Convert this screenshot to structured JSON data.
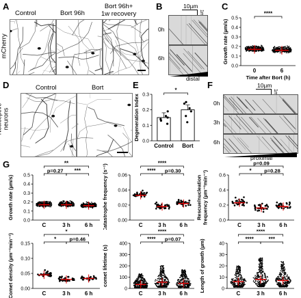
{
  "panels": {
    "A": {
      "letter": "A",
      "row_label": "mCherry",
      "titles": [
        "Control",
        "Bort 96h",
        "Bort 96h+\n1w recovery"
      ]
    },
    "B": {
      "letter": "B",
      "scale_x": "10µm",
      "scale_t": "1min",
      "rows": [
        "0h",
        "6h"
      ],
      "axis": "distal"
    },
    "C": {
      "letter": "C"
    },
    "D": {
      "letter": "D",
      "row_label": "Nociceptive\nneurons",
      "titles": [
        "Control",
        "Bort"
      ]
    },
    "E": {
      "letter": "E"
    },
    "F": {
      "letter": "F",
      "scale_x": "10µm",
      "scale_t": "1min",
      "rows": [
        "0h",
        "3h",
        "6h"
      ],
      "axis": "proximal"
    },
    "G": {
      "letter": "G"
    }
  },
  "chart_data": [
    {
      "id": "C",
      "type": "scatter",
      "ylabel": "Growth rate (µm/s)",
      "xlabel": "Time after Bort (h)",
      "categories": [
        "0",
        "6"
      ],
      "ylim": [
        0,
        0.5
      ],
      "yticks": [
        "0.0",
        "0.1",
        "0.2",
        "0.3",
        "0.4",
        "0.5"
      ],
      "means": [
        0.17,
        0.16
      ],
      "sig": [
        {
          "from": 0,
          "to": 1,
          "label": "****"
        }
      ]
    },
    {
      "id": "E",
      "type": "bar",
      "ylabel": "Degeneration Index",
      "categories": [
        "Control",
        "Bort"
      ],
      "values": [
        0.15,
        0.2
      ],
      "ylim": [
        0,
        0.3
      ],
      "yticks": [
        "0.0",
        "0.1",
        "0.2",
        "0.3"
      ],
      "points": [
        [
          0.11,
          0.13,
          0.14,
          0.15,
          0.16,
          0.19
        ],
        [
          0.12,
          0.16,
          0.19,
          0.21,
          0.24,
          0.25
        ]
      ],
      "sig": [
        {
          "from": 0,
          "to": 1,
          "label": "*"
        }
      ]
    },
    {
      "id": "G1",
      "type": "scatter",
      "ylabel": "Growth rate (µm/s)",
      "categories": [
        "C",
        "3 h",
        "6 h"
      ],
      "ylim": [
        0,
        0.5
      ],
      "yticks": [
        "0.0",
        "0.1",
        "0.2",
        "0.3",
        "0.4",
        "0.5"
      ],
      "means": [
        0.17,
        0.17,
        0.16
      ],
      "sig": [
        {
          "from": 0,
          "to": 1,
          "label": "p=0.27"
        },
        {
          "from": 1,
          "to": 2,
          "label": "***"
        },
        {
          "from": 0,
          "to": 2,
          "label": "**"
        }
      ]
    },
    {
      "id": "G2",
      "type": "scatter",
      "ylabel": "Catastrophe frequency (s⁻¹)",
      "categories": [
        "C",
        "3 h",
        "6 h"
      ],
      "ylim": [
        0,
        0.06
      ],
      "yticks": [
        "0.00",
        "0.02",
        "0.04",
        "0.06"
      ],
      "means": [
        0.033,
        0.018,
        0.022
      ],
      "sig": [
        {
          "from": 0,
          "to": 1,
          "label": "****"
        },
        {
          "from": 1,
          "to": 2,
          "label": "p=0.30"
        },
        {
          "from": 0,
          "to": 2,
          "label": "****"
        }
      ]
    },
    {
      "id": "G3",
      "type": "scatter",
      "ylabel": "Rescue/nucleation\nfrequency (µm⁻²min⁻¹)",
      "categories": [
        "C",
        "3 h",
        "6 h"
      ],
      "ylim": [
        0,
        0.6
      ],
      "yticks": [
        "0.0",
        "0.2",
        "0.4",
        "0.6"
      ],
      "means": [
        0.23,
        0.16,
        0.18
      ],
      "sig": [
        {
          "from": 0,
          "to": 1,
          "label": "*"
        },
        {
          "from": 1,
          "to": 2,
          "label": "p=0.28"
        },
        {
          "from": 0,
          "to": 2,
          "label": "p=0.09"
        }
      ]
    },
    {
      "id": "G4",
      "type": "scatter",
      "ylabel": "Comet density (µm⁻²min⁻¹)",
      "categories": [
        "C",
        "3 h",
        "6 h"
      ],
      "ylim": [
        0,
        0.15
      ],
      "yticks": [
        "0.00",
        "0.05",
        "0.10",
        "0.15"
      ],
      "means": [
        0.045,
        0.03,
        0.033
      ],
      "sig": [
        {
          "from": 0,
          "to": 1,
          "label": "*"
        },
        {
          "from": 1,
          "to": 2,
          "label": "p=0.46"
        },
        {
          "from": 0,
          "to": 2,
          "label": "*"
        }
      ]
    },
    {
      "id": "G5",
      "type": "scatter",
      "ylabel": "comet lifetime (s)",
      "categories": [
        "C",
        "3 h",
        "6 h"
      ],
      "ylim": [
        0,
        400
      ],
      "yticks": [
        "0",
        "100",
        "200",
        "300",
        "400"
      ],
      "means": [
        35,
        55,
        45
      ],
      "sig": [
        {
          "from": 0,
          "to": 1,
          "label": "****"
        },
        {
          "from": 1,
          "to": 2,
          "label": "p=0.07"
        },
        {
          "from": 0,
          "to": 2,
          "label": "****"
        }
      ]
    },
    {
      "id": "G6",
      "type": "scatter",
      "ylabel": "Length of growth (µm)",
      "categories": [
        "C",
        "3 h",
        "6 h"
      ],
      "ylim": [
        0,
        40
      ],
      "yticks": [
        "0",
        "10",
        "20",
        "30",
        "40"
      ],
      "means": [
        6,
        8,
        7
      ],
      "sig": [
        {
          "from": 0,
          "to": 1,
          "label": "****"
        },
        {
          "from": 1,
          "to": 2,
          "label": "***"
        },
        {
          "from": 0,
          "to": 2,
          "label": "****"
        }
      ]
    }
  ]
}
